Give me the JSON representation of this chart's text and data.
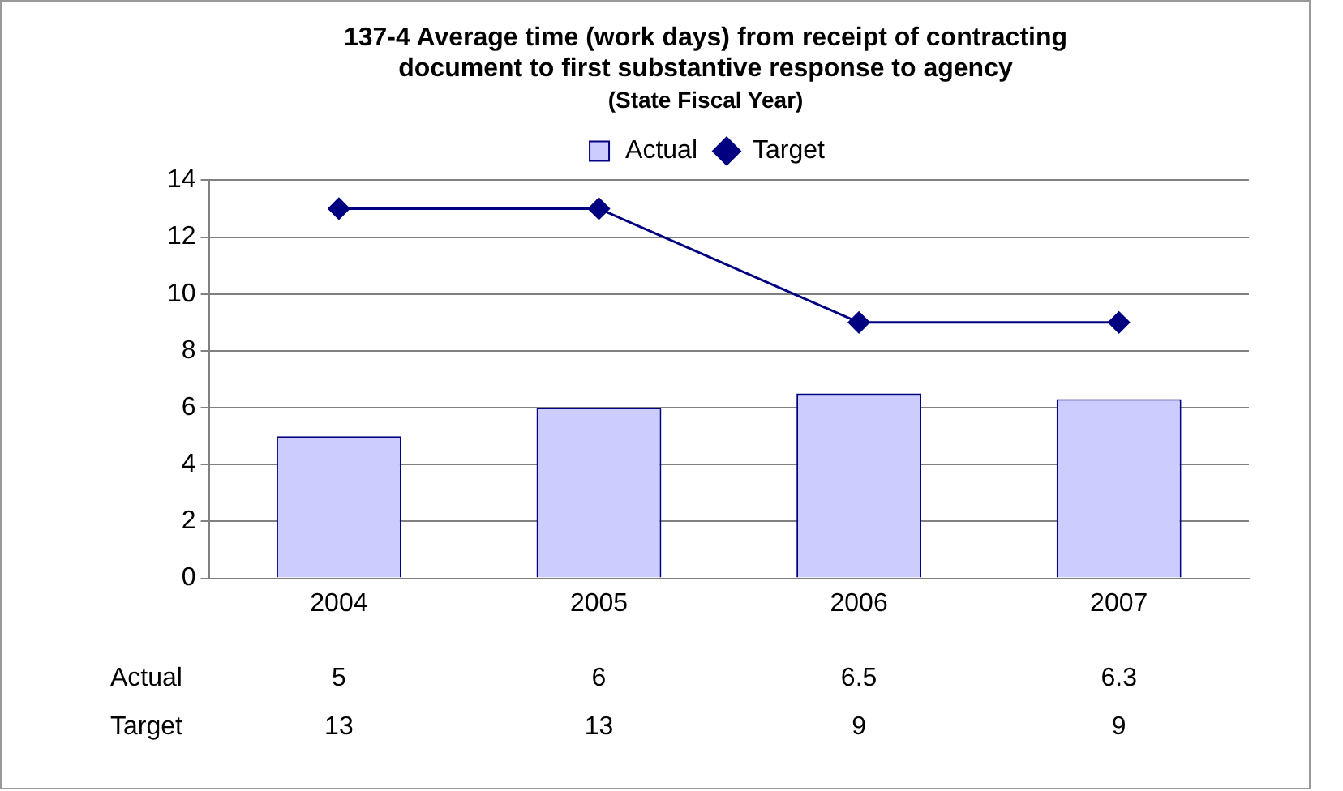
{
  "chart_data": {
    "type": "bar",
    "title": "137-4 Average time (work days) from receipt of contracting document to first substantive response to agency",
    "subtitle": "(State Fiscal Year)",
    "categories": [
      "2004",
      "2005",
      "2006",
      "2007"
    ],
    "series": [
      {
        "name": "Actual",
        "color": "#ccccff",
        "values": [
          5,
          6,
          6.5,
          6.3
        ]
      },
      {
        "name": "Target",
        "type": "line",
        "color": "#000080",
        "values": [
          13,
          13,
          9,
          9
        ],
        "marker": "diamond"
      }
    ],
    "ylim": [
      0,
      14
    ],
    "yticks": [
      0,
      2,
      4,
      6,
      8,
      10,
      12,
      14
    ],
    "grid": "y",
    "legend": "top",
    "data_labels": true
  }
}
